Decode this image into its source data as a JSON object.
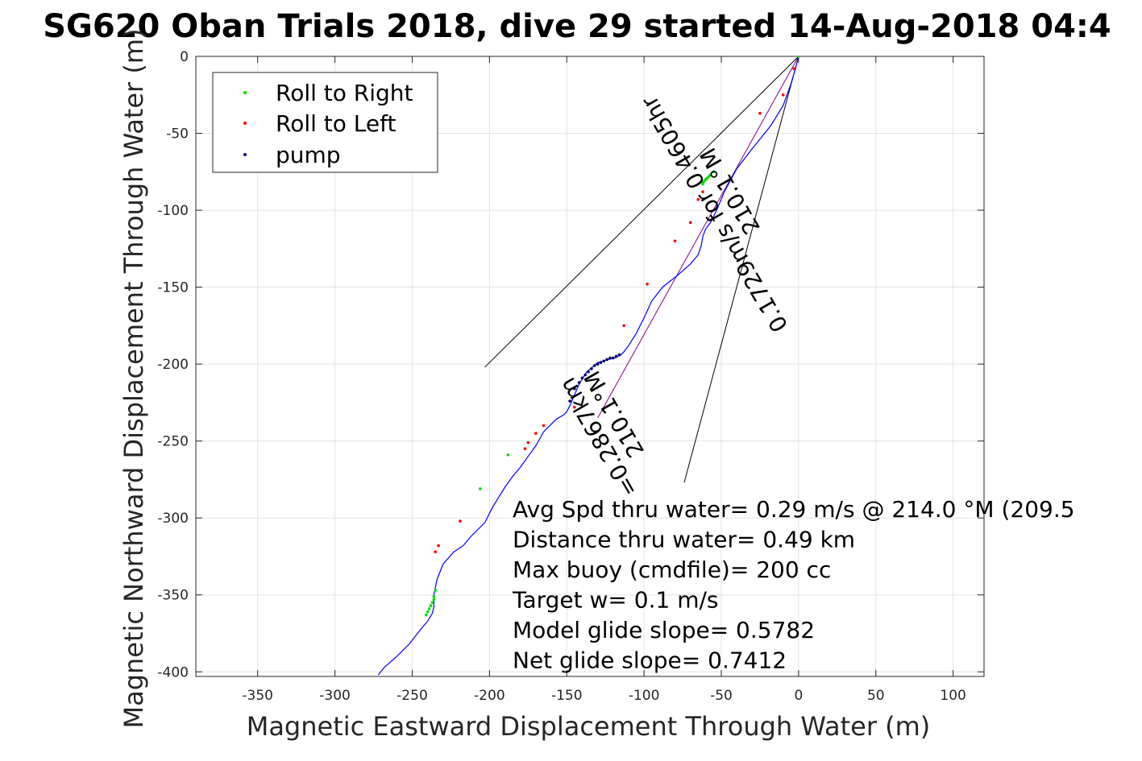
{
  "chart_data": {
    "type": "line",
    "title": "SG620 Oban Trials 2018, dive 29 started 14-Aug-2018 04:4",
    "xlabel": "Magnetic Eastward Displacement Through Water (m)",
    "ylabel": "Magnetic Northward Displacement Through Water (m)",
    "xlim": [
      -390,
      120
    ],
    "ylim": [
      -403,
      0
    ],
    "xticks": [
      -350,
      -300,
      -250,
      -200,
      -150,
      -100,
      -50,
      0,
      50,
      100
    ],
    "yticks": [
      0,
      -50,
      -100,
      -150,
      -200,
      -250,
      -300,
      -350,
      -400
    ],
    "grid": true,
    "legend_placement": "top-left",
    "legend": [
      {
        "label": "Roll to Right",
        "color": "#00dd00"
      },
      {
        "label": "Roll to Left",
        "color": "#ff0000"
      },
      {
        "label": "pump",
        "color": "#000066"
      }
    ],
    "track": {
      "color": "#0000ff",
      "x": [
        0,
        -2,
        -5,
        -10,
        -18,
        -30,
        -40,
        -48,
        -53,
        -57,
        -60,
        -62,
        -63,
        -65,
        -70,
        -78,
        -88,
        -95,
        -100,
        -105,
        -110,
        -113,
        -115,
        -117,
        -119,
        -123,
        -130,
        -137,
        -142,
        -145,
        -148,
        -150,
        -152,
        -157,
        -165,
        -170,
        -175,
        -180,
        -185,
        -190,
        -198,
        -203,
        -208,
        -212,
        -217,
        -223,
        -230,
        -234,
        -236,
        -236,
        -237,
        -240,
        -245,
        -252,
        -260,
        -268,
        -272
      ],
      "y": [
        0,
        -8,
        -18,
        -32,
        -45,
        -60,
        -73,
        -88,
        -100,
        -108,
        -112,
        -117,
        -123,
        -129,
        -135,
        -142,
        -150,
        -159,
        -170,
        -180,
        -188,
        -192,
        -194,
        -195,
        -196,
        -197,
        -199,
        -205,
        -213,
        -220,
        -227,
        -231,
        -233,
        -236,
        -244,
        -253,
        -260,
        -267,
        -273,
        -280,
        -293,
        -303,
        -308,
        -312,
        -318,
        -322,
        -330,
        -340,
        -350,
        -358,
        -362,
        -367,
        -373,
        -382,
        -390,
        -397,
        -402
      ]
    },
    "roll_right_x": [
      0,
      -55,
      -57,
      -58,
      -59,
      -60,
      -61,
      -62,
      -62,
      -188,
      -206,
      -235,
      -236,
      -236,
      -237,
      -238,
      -239,
      -240,
      -241
    ],
    "roll_right_y": [
      0,
      -75,
      -77,
      -78,
      -79,
      -80,
      -81,
      -82,
      -83,
      -259,
      -281,
      -347,
      -351,
      -353,
      -355,
      -357,
      -359,
      -361,
      -363
    ],
    "roll_left_x": [
      -3,
      -10,
      -25,
      -60,
      -62,
      -65,
      -70,
      -80,
      -98,
      -113,
      -145,
      -165,
      -170,
      -175,
      -177,
      -219,
      -233,
      -235
    ],
    "roll_left_y": [
      -8,
      -25,
      -37,
      -80,
      -88,
      -93,
      -108,
      -120,
      -148,
      -175,
      -228,
      -240,
      -245,
      -251,
      -255,
      -302,
      -318,
      -322
    ],
    "pump_x": [
      -116,
      -118,
      -120,
      -122,
      -124,
      -126,
      -128,
      -130,
      -132,
      -134,
      -136,
      -138,
      -140,
      -142,
      -145,
      -148,
      -130,
      -118
    ],
    "pump_y": [
      -194,
      -195,
      -196,
      -196,
      -197,
      -198,
      -199,
      -200,
      -201,
      -203,
      -205,
      -207,
      -209,
      -212,
      -216,
      -224,
      -200,
      -195
    ],
    "heading_lines": [
      {
        "x": [
          0,
          -203
        ],
        "y": [
          0,
          -202
        ],
        "color": "#000000"
      },
      {
        "x": [
          0,
          -74
        ],
        "y": [
          0,
          -277
        ],
        "color": "#000000"
      },
      {
        "x": [
          0,
          -130
        ],
        "y": [
          0,
          -235
        ],
        "color": "#800080"
      }
    ],
    "rotated_labels": [
      {
        "text": "0.1729m/s for 0.4605hr",
        "x": -50,
        "y": -100,
        "angle": 240
      },
      {
        "text": "210.1°M",
        "x": -40,
        "y": -85,
        "angle": 240
      },
      {
        "text": "=0.2867km",
        "x": -125,
        "y": -245,
        "angle": 240
      },
      {
        "text": "210.1°M",
        "x": -115,
        "y": -230,
        "angle": 240
      }
    ],
    "stats": [
      "Avg Spd thru water=  0.29 m/s @ 214.0 °M (209.5",
      "Distance thru water=  0.49 km",
      "Max buoy (cmdfile)= 200 cc",
      "Target w= 0.1 m/s",
      "Model glide slope= 0.5782",
      "Net glide slope= 0.7412"
    ]
  }
}
